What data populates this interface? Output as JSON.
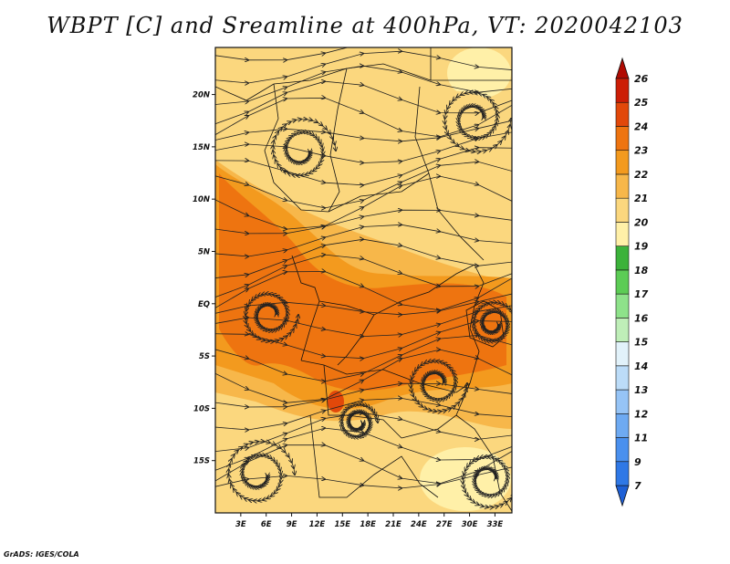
{
  "title": "WBPT [C] and Sreamline at 400hPa, VT: 2020042103",
  "footer": "GrADS: IGES/COLA",
  "chart_data": {
    "type": "heatmap",
    "title": "WBPT [C] and Sreamline at 400hPa, VT: 2020042103",
    "variable": "WBPT [C]",
    "overlay": "Streamline",
    "level": "400hPa",
    "valid_time": "2020042103",
    "lon_range": [
      0,
      35
    ],
    "lat_range": [
      -20,
      24.5
    ],
    "x_ticks": [
      3,
      6,
      9,
      12,
      15,
      18,
      21,
      24,
      27,
      30,
      33
    ],
    "x_tick_labels": [
      "3E",
      "6E",
      "9E",
      "12E",
      "15E",
      "18E",
      "21E",
      "24E",
      "27E",
      "30E",
      "33E"
    ],
    "y_ticks": [
      20,
      15,
      10,
      5,
      0,
      -5,
      -10,
      -15
    ],
    "y_tick_labels": [
      "20N",
      "15N",
      "10N",
      "5N",
      "EQ",
      "5S",
      "10S",
      "15S"
    ],
    "colorbar": {
      "levels": [
        7,
        9,
        11,
        12,
        13,
        14,
        15,
        16,
        17,
        18,
        19,
        20,
        21,
        22,
        23,
        24,
        25,
        26
      ],
      "labels": [
        "7",
        "9",
        "11",
        "12",
        "13",
        "14",
        "15",
        "16",
        "17",
        "18",
        "19",
        "20",
        "21",
        "22",
        "23",
        "24",
        "25",
        "26"
      ],
      "colors": [
        "#1e60d6",
        "#2f78e6",
        "#4a90ee",
        "#6eaaf2",
        "#96c4f6",
        "#bcdcf8",
        "#e2f2fa",
        "#bfeeb8",
        "#8ee28a",
        "#5ccc55",
        "#3cb23a",
        "#fff0a8",
        "#fbd77e",
        "#f7b74a",
        "#f39a1e",
        "#ee7410",
        "#e2480a",
        "#cc1e06",
        "#b00a02"
      ]
    }
  }
}
